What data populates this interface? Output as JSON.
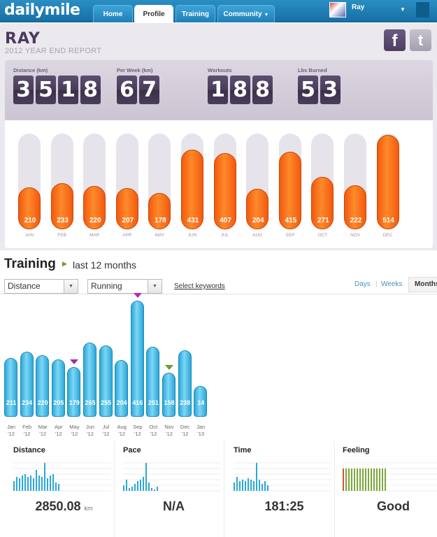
{
  "app": {
    "logo": "dailymile"
  },
  "nav": {
    "tabs": [
      {
        "label": "Home"
      },
      {
        "label": "Profile"
      },
      {
        "label": "Training"
      },
      {
        "label": "Community"
      }
    ],
    "active_tab": "Profile",
    "user": "Ray"
  },
  "report": {
    "name": "RAY",
    "subtitle": "2012 YEAR END REPORT",
    "social": {
      "facebook": "f",
      "twitter": "t"
    },
    "stats": [
      {
        "label": "Distance (km)",
        "value": "3518"
      },
      {
        "label": "Per Week (km)",
        "value": "67"
      },
      {
        "label": "Workouts",
        "value": "188"
      },
      {
        "label": "Lbs Burned",
        "value": "53"
      }
    ],
    "monthly": {
      "months": [
        "JAN",
        "FEB",
        "MAR",
        "APR",
        "MAY",
        "JUN",
        "JUL",
        "AUG",
        "SEP",
        "OCT",
        "NOV",
        "DEC"
      ],
      "values": [
        210,
        233,
        220,
        207,
        178,
        431,
        407,
        204,
        415,
        271,
        222,
        514
      ],
      "max": 514,
      "bar_color": "#f5661a"
    }
  },
  "training": {
    "title": "Training",
    "subtitle": "last 12 months",
    "metric_select": "Distance",
    "activity_select": "Running",
    "keywords_link": "Select keywords",
    "ranges": [
      "Days",
      "Weeks",
      "Months"
    ],
    "active_range": "Months",
    "chart_data": {
      "type": "bar",
      "categories": [
        "Jan '12",
        "Feb '12",
        "Mar '12",
        "Apr '12",
        "May '12",
        "Jun '12",
        "Jul '12",
        "Aug '12",
        "Sep '12",
        "Oct '12",
        "Nov '12",
        "Dec '12",
        "Jan '13"
      ],
      "month_labels": [
        "Jan",
        "Feb",
        "Mar",
        "Apr",
        "May",
        "Jun",
        "Jul",
        "Aug",
        "Sep",
        "Oct",
        "Nov",
        "Dec",
        "Jan"
      ],
      "year_labels": [
        "'12",
        "'12",
        "'12",
        "'12",
        "'12",
        "'12",
        "'12",
        "'12",
        "'12",
        "'12",
        "'12",
        "'12",
        "'13"
      ],
      "values": [
        211,
        234,
        220,
        205,
        179,
        265,
        255,
        204,
        416,
        251,
        158,
        238,
        14
      ],
      "ylim": [
        0,
        416
      ],
      "bar_color": "#3cb4e2",
      "markers": [
        {
          "index": 4,
          "color": "#9b2fae"
        },
        {
          "index": 8,
          "color": "#c025c4"
        },
        {
          "index": 10,
          "color": "#6a9a3a"
        }
      ]
    },
    "summary": [
      {
        "label": "Distance",
        "value": "2850.08",
        "unit": "km"
      },
      {
        "label": "Pace",
        "value": "N/A",
        "unit": ""
      },
      {
        "label": "Time",
        "value": "181:25",
        "unit": ""
      },
      {
        "label": "Feeling",
        "value": "Good",
        "unit": ""
      }
    ],
    "spark_color": "#2aa8d8",
    "feeling_colors": {
      "first": "#d9542a",
      "rest": "#7aa93a"
    }
  }
}
